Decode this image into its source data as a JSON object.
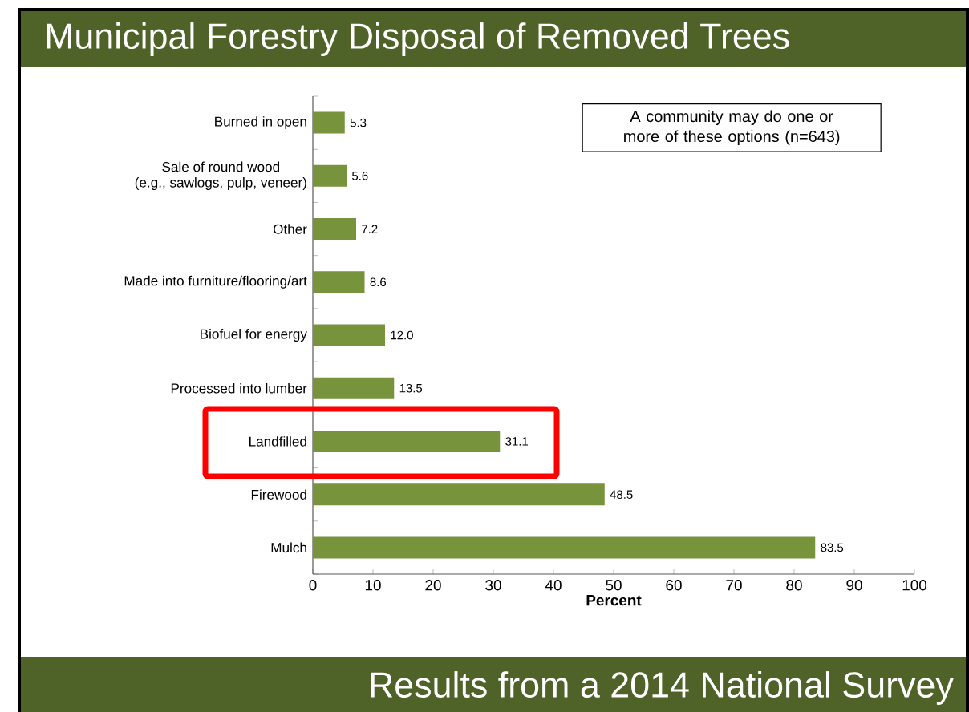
{
  "chart_data": {
    "type": "bar",
    "orientation": "horizontal",
    "title": "Municipal Forestry Disposal of Removed Trees",
    "subtitle": "Results from a 2014 National Survey",
    "xlabel": "Percent",
    "categories": [
      "Burned in open",
      "Sale of round wood\n(e.g., sawlogs, pulp, veneer)",
      "Other",
      "Made into furniture/flooring/art",
      "Biofuel for energy",
      "Processed into lumber",
      "Landfilled",
      "Firewood",
      "Mulch"
    ],
    "values": [
      5.3,
      5.6,
      7.2,
      8.6,
      12.0,
      13.5,
      31.1,
      48.5,
      83.5
    ],
    "value_labels": [
      "5.3",
      "5.6",
      "7.2",
      "8.6",
      "12.0",
      "13.5",
      "31.1",
      "48.5",
      "83.5"
    ],
    "color": "#77933c",
    "xlim": [
      0,
      100
    ],
    "xticks": [
      0,
      10,
      20,
      30,
      40,
      50,
      60,
      70,
      80,
      90,
      100
    ],
    "annotations": [
      "A community may do one or more of these options (n=643)"
    ]
  }
}
